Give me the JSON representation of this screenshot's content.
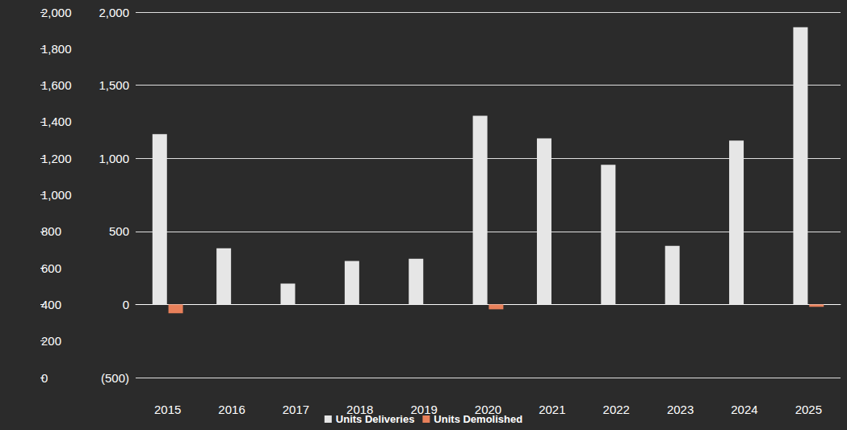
{
  "chart_data": {
    "type": "bar",
    "categories": [
      "2015",
      "2016",
      "2017",
      "2018",
      "2019",
      "2020",
      "2021",
      "2022",
      "2023",
      "2024",
      "2025"
    ],
    "series": [
      {
        "name": "Units Deliveries",
        "color": "#e6e6e6",
        "values": [
          1165,
          385,
          143,
          297,
          313,
          1291,
          1137,
          956,
          401,
          1121,
          1896
        ]
      },
      {
        "name": "Units Demolished",
        "color": "#e8805a",
        "values": [
          -60,
          0,
          0,
          0,
          0,
          -33,
          0,
          0,
          0,
          0,
          -16
        ]
      }
    ],
    "ylim": [
      -500,
      2000
    ],
    "yticks": [
      {
        "value": -500,
        "label": "(500)"
      },
      0,
      500,
      {
        "value": 1000,
        "label": "1,000"
      },
      {
        "value": 1500,
        "label": "1,500"
      },
      {
        "value": 2000,
        "label": "2,000"
      }
    ],
    "y2lim": [
      0,
      2000
    ],
    "y2ticks": [
      0,
      200,
      400,
      600,
      800,
      {
        "value": 1000,
        "label": "1,000"
      },
      {
        "value": 1200,
        "label": "1,200"
      },
      {
        "value": 1400,
        "label": "1,400"
      },
      {
        "value": 1600,
        "label": "1,600"
      },
      {
        "value": 1800,
        "label": "1,800"
      },
      {
        "value": 2000,
        "label": "2,000"
      }
    ],
    "grid": true,
    "legend": "bottom"
  }
}
